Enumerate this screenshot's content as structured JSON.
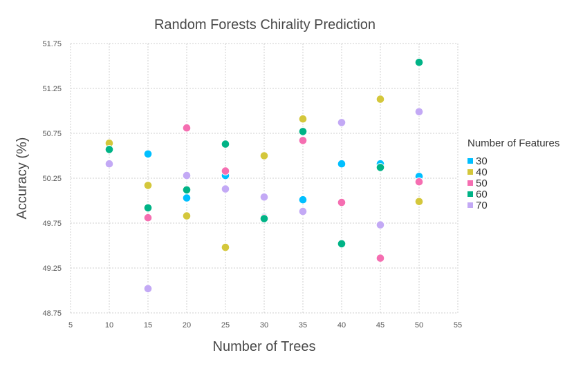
{
  "chart_data": {
    "type": "scatter",
    "title": "Random Forests Chirality Prediction",
    "xlabel": "Number of Trees",
    "ylabel": "Accuracy (%)",
    "xlim": [
      5,
      55
    ],
    "ylim": [
      48.75,
      51.75
    ],
    "x_ticks": [
      5,
      10,
      15,
      20,
      25,
      30,
      35,
      40,
      45,
      50,
      55
    ],
    "y_ticks": [
      48.75,
      49.25,
      49.75,
      50.25,
      50.75,
      51.25,
      51.75
    ],
    "grid": true,
    "legend_title": "Number of Features",
    "legend_position": "right",
    "series": [
      {
        "name": "30",
        "color": "#00bfff",
        "x": [
          10,
          15,
          20,
          25,
          30,
          35,
          40,
          45,
          50
        ],
        "y": [
          50.63,
          50.52,
          50.03,
          50.28,
          49.82,
          50.01,
          50.41,
          50.41,
          50.27
        ]
      },
      {
        "name": "40",
        "color": "#d4c73b",
        "x": [
          10,
          15,
          20,
          25,
          30,
          35,
          40,
          45,
          50
        ],
        "y": [
          50.64,
          50.17,
          49.83,
          49.48,
          50.5,
          50.91,
          50.87,
          51.13,
          49.99
        ]
      },
      {
        "name": "50",
        "color": "#f56eb1",
        "x": [
          10,
          15,
          20,
          25,
          30,
          35,
          40,
          45,
          50
        ],
        "y": [
          50.57,
          49.81,
          50.81,
          50.33,
          49.81,
          50.67,
          49.98,
          49.36,
          50.21
        ]
      },
      {
        "name": "60",
        "color": "#00b386",
        "x": [
          10,
          15,
          20,
          25,
          30,
          35,
          40,
          45,
          50
        ],
        "y": [
          50.57,
          49.92,
          50.12,
          50.63,
          49.8,
          50.77,
          49.52,
          50.37,
          51.54
        ]
      },
      {
        "name": "70",
        "color": "#c3a9f5",
        "x": [
          10,
          15,
          20,
          25,
          30,
          35,
          40,
          45,
          50
        ],
        "y": [
          50.41,
          49.02,
          50.28,
          50.13,
          50.04,
          49.88,
          50.87,
          49.73,
          50.99
        ]
      }
    ]
  }
}
